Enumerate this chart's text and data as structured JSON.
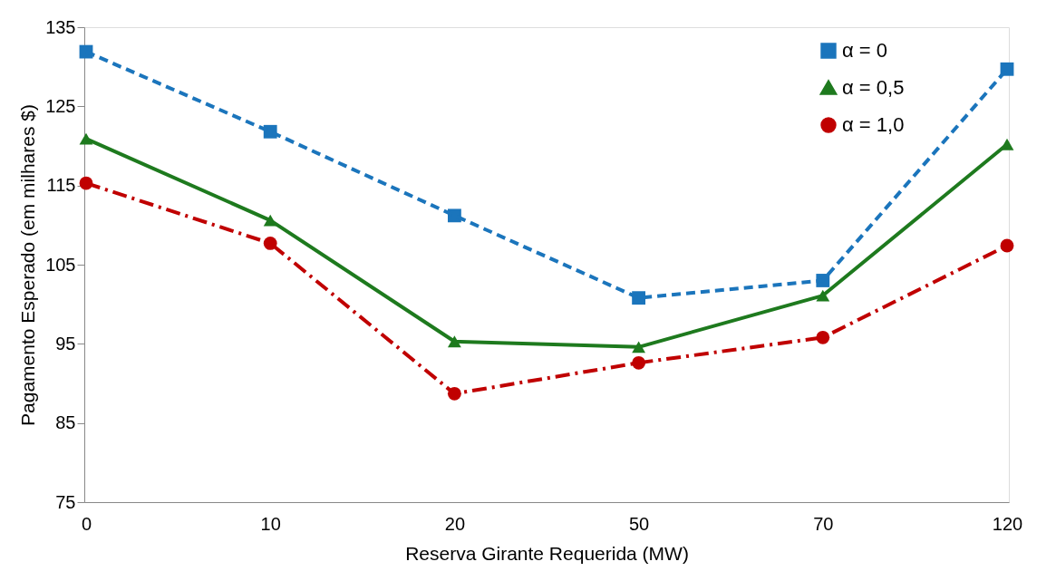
{
  "chart_data": {
    "type": "line",
    "xlabel": "Reserva Girante Requerida (MW)",
    "ylabel": "Pagamento Esperado (em milhares $)",
    "categories": [
      "0",
      "10",
      "20",
      "50",
      "70",
      "120"
    ],
    "series": [
      {
        "name": "α =  0",
        "color": "#1b75bc",
        "marker": "square",
        "line_style": "dashed",
        "values": [
          131.9,
          121.8,
          111.2,
          100.8,
          103.0,
          129.7
        ]
      },
      {
        "name": "α = 0,5",
        "color": "#1e7a1e",
        "marker": "triangle",
        "line_style": "solid",
        "values": [
          120.9,
          110.6,
          95.3,
          94.6,
          101.1,
          120.2
        ]
      },
      {
        "name": "α = 1,0",
        "color": "#c00000",
        "marker": "circle",
        "line_style": "dashdot",
        "values": [
          115.3,
          107.7,
          88.7,
          92.6,
          95.8,
          107.4
        ]
      }
    ],
    "ylim": [
      75,
      135
    ],
    "yticks": [
      75,
      85,
      95,
      105,
      115,
      125,
      135
    ],
    "grid": false,
    "legend": "top right"
  }
}
